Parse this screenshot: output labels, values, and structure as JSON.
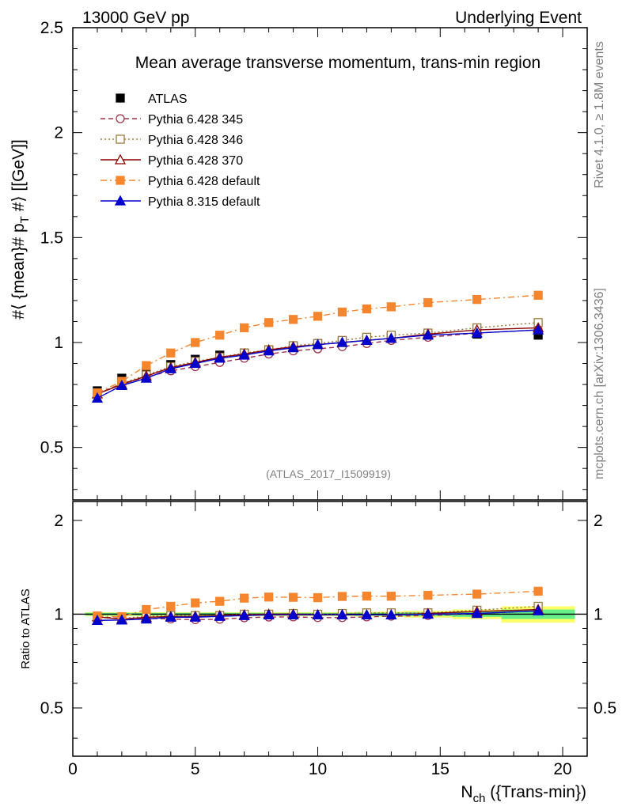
{
  "header": {
    "left": "13000 GeV pp",
    "right": "Underlying Event"
  },
  "side_labels": {
    "rivet": "Rivet 4.1.0, ≥ 1.8M events",
    "mcplots": "mcplots.cern.ch [arXiv:1306.3436]"
  },
  "chart_data": [
    {
      "type": "line",
      "title": "Mean average transverse momentum, trans-min region",
      "watermark": "(ATLAS_2017_I1509919)",
      "ylabel": "#⟨ {mean}# p_T #⟩ [[GeV]]",
      "ylabel_main": "#⟨ {mean}# p",
      "ylabel_sub": "T",
      "ylabel_tail": " #⟩ [[GeV]]",
      "xlim": [
        0,
        21
      ],
      "ylim": [
        0.25,
        2.5
      ],
      "y_ticks": [
        0.5,
        1,
        1.5,
        2,
        2.5
      ],
      "y_tick_labels": [
        "0.5",
        "1",
        "1.5",
        "2",
        "2.5"
      ],
      "legend_position": "top-left",
      "x": [
        1,
        2,
        3,
        4,
        5,
        6,
        7,
        8,
        9,
        10,
        11,
        12,
        13,
        14.5,
        16.5,
        19
      ],
      "series": [
        {
          "name": "ATLAS",
          "style": "data",
          "color": "#000000",
          "marker": "square",
          "values": [
            0.77,
            0.83,
            0.86,
            0.895,
            0.92,
            0.94,
            0.95,
            0.965,
            0.98,
            0.995,
            1.005,
            1.015,
            1.025,
            1.035,
            1.04,
            1.035
          ]
        },
        {
          "name": "Pythia 6.428 345",
          "style": "dashed",
          "color": "#a0304a",
          "marker": "circle-open",
          "values": [
            0.755,
            0.805,
            0.835,
            0.865,
            0.885,
            0.905,
            0.925,
            0.945,
            0.96,
            0.97,
            0.98,
            0.995,
            1.01,
            1.025,
            1.045,
            1.06
          ]
        },
        {
          "name": "Pythia 6.428 346",
          "style": "dotted",
          "color": "#9c7a3a",
          "marker": "square-open",
          "values": [
            0.755,
            0.805,
            0.845,
            0.885,
            0.91,
            0.93,
            0.95,
            0.965,
            0.985,
            0.995,
            1.01,
            1.025,
            1.035,
            1.045,
            1.07,
            1.095
          ]
        },
        {
          "name": "Pythia 6.428 370",
          "style": "solid",
          "color": "#8b0000",
          "marker": "triangle-open",
          "values": [
            0.755,
            0.8,
            0.84,
            0.88,
            0.905,
            0.93,
            0.945,
            0.965,
            0.98,
            0.99,
            1.0,
            1.01,
            1.02,
            1.04,
            1.06,
            1.07
          ]
        },
        {
          "name": "Pythia 6.428 default",
          "style": "dashdot",
          "color": "#f5862e",
          "marker": "square",
          "values": [
            0.76,
            0.815,
            0.89,
            0.95,
            1.0,
            1.035,
            1.07,
            1.095,
            1.11,
            1.125,
            1.145,
            1.16,
            1.17,
            1.19,
            1.205,
            1.225
          ]
        },
        {
          "name": "Pythia 8.315 default",
          "style": "solid",
          "color": "#0000cc",
          "marker": "triangle",
          "values": [
            0.735,
            0.795,
            0.83,
            0.875,
            0.9,
            0.925,
            0.94,
            0.96,
            0.975,
            0.99,
            1.0,
            1.01,
            1.02,
            1.035,
            1.045,
            1.06
          ]
        }
      ]
    },
    {
      "type": "line",
      "ylabel": "Ratio to ATLAS",
      "xlabel": "N_ch ({Trans-min})",
      "xlabel_main": "N",
      "xlabel_sub": "ch",
      "xlabel_tail": " ({Trans-min})",
      "xlim": [
        0,
        21
      ],
      "ylim": [
        0.35,
        2.3
      ],
      "x_ticks": [
        0,
        5,
        10,
        15,
        20
      ],
      "x_tick_labels": [
        "0",
        "5",
        "10",
        "15",
        "20"
      ],
      "y_ticks": [
        0.5,
        1,
        2
      ],
      "y_tick_labels": [
        "0.5",
        "1",
        "2"
      ],
      "uncertainty_bands": {
        "inner_color": "#66ee88",
        "outer_color": "#ffff66",
        "bins": [
          {
            "x0": 0.5,
            "x1": 1.5,
            "stat": 0.01,
            "total": 0.015
          },
          {
            "x0": 1.5,
            "x1": 2.5,
            "stat": 0.01,
            "total": 0.015
          },
          {
            "x0": 2.5,
            "x1": 3.5,
            "stat": 0.01,
            "total": 0.015
          },
          {
            "x0": 3.5,
            "x1": 4.5,
            "stat": 0.01,
            "total": 0.015
          },
          {
            "x0": 4.5,
            "x1": 5.5,
            "stat": 0.01,
            "total": 0.015
          },
          {
            "x0": 5.5,
            "x1": 6.5,
            "stat": 0.01,
            "total": 0.015
          },
          {
            "x0": 6.5,
            "x1": 7.5,
            "stat": 0.01,
            "total": 0.015
          },
          {
            "x0": 7.5,
            "x1": 8.5,
            "stat": 0.01,
            "total": 0.015
          },
          {
            "x0": 8.5,
            "x1": 9.5,
            "stat": 0.01,
            "total": 0.015
          },
          {
            "x0": 9.5,
            "x1": 10.5,
            "stat": 0.01,
            "total": 0.015
          },
          {
            "x0": 10.5,
            "x1": 11.5,
            "stat": 0.01,
            "total": 0.015
          },
          {
            "x0": 11.5,
            "x1": 12.5,
            "stat": 0.012,
            "total": 0.018
          },
          {
            "x0": 12.5,
            "x1": 13.5,
            "stat": 0.012,
            "total": 0.02
          },
          {
            "x0": 13.5,
            "x1": 15.5,
            "stat": 0.015,
            "total": 0.025
          },
          {
            "x0": 15.5,
            "x1": 17.5,
            "stat": 0.02,
            "total": 0.035
          },
          {
            "x0": 17.5,
            "x1": 20.5,
            "stat": 0.035,
            "total": 0.06
          }
        ]
      },
      "series": [
        {
          "name": "Pythia 6.428 345",
          "values": [
            0.98,
            0.97,
            0.97,
            0.965,
            0.96,
            0.963,
            0.974,
            0.979,
            0.98,
            0.975,
            0.975,
            0.98,
            0.985,
            0.99,
            1.005,
            1.025
          ]
        },
        {
          "name": "Pythia 6.428 346",
          "values": [
            0.98,
            0.97,
            0.983,
            0.99,
            0.99,
            0.99,
            1.0,
            1.0,
            1.005,
            1.0,
            1.005,
            1.01,
            1.01,
            1.01,
            1.03,
            1.06
          ]
        },
        {
          "name": "Pythia 6.428 370",
          "values": [
            0.98,
            0.964,
            0.977,
            0.983,
            0.984,
            0.99,
            0.995,
            1.0,
            1.0,
            0.995,
            0.995,
            0.995,
            0.995,
            1.005,
            1.02,
            1.035
          ]
        },
        {
          "name": "Pythia 6.428 default",
          "values": [
            0.987,
            0.982,
            1.035,
            1.06,
            1.087,
            1.1,
            1.126,
            1.135,
            1.133,
            1.13,
            1.14,
            1.143,
            1.142,
            1.15,
            1.16,
            1.185
          ]
        },
        {
          "name": "Pythia 8.315 default",
          "values": [
            0.955,
            0.958,
            0.965,
            0.978,
            0.978,
            0.984,
            0.99,
            0.995,
            0.995,
            0.995,
            0.995,
            0.995,
            0.995,
            1.0,
            1.005,
            1.025
          ]
        }
      ]
    }
  ]
}
